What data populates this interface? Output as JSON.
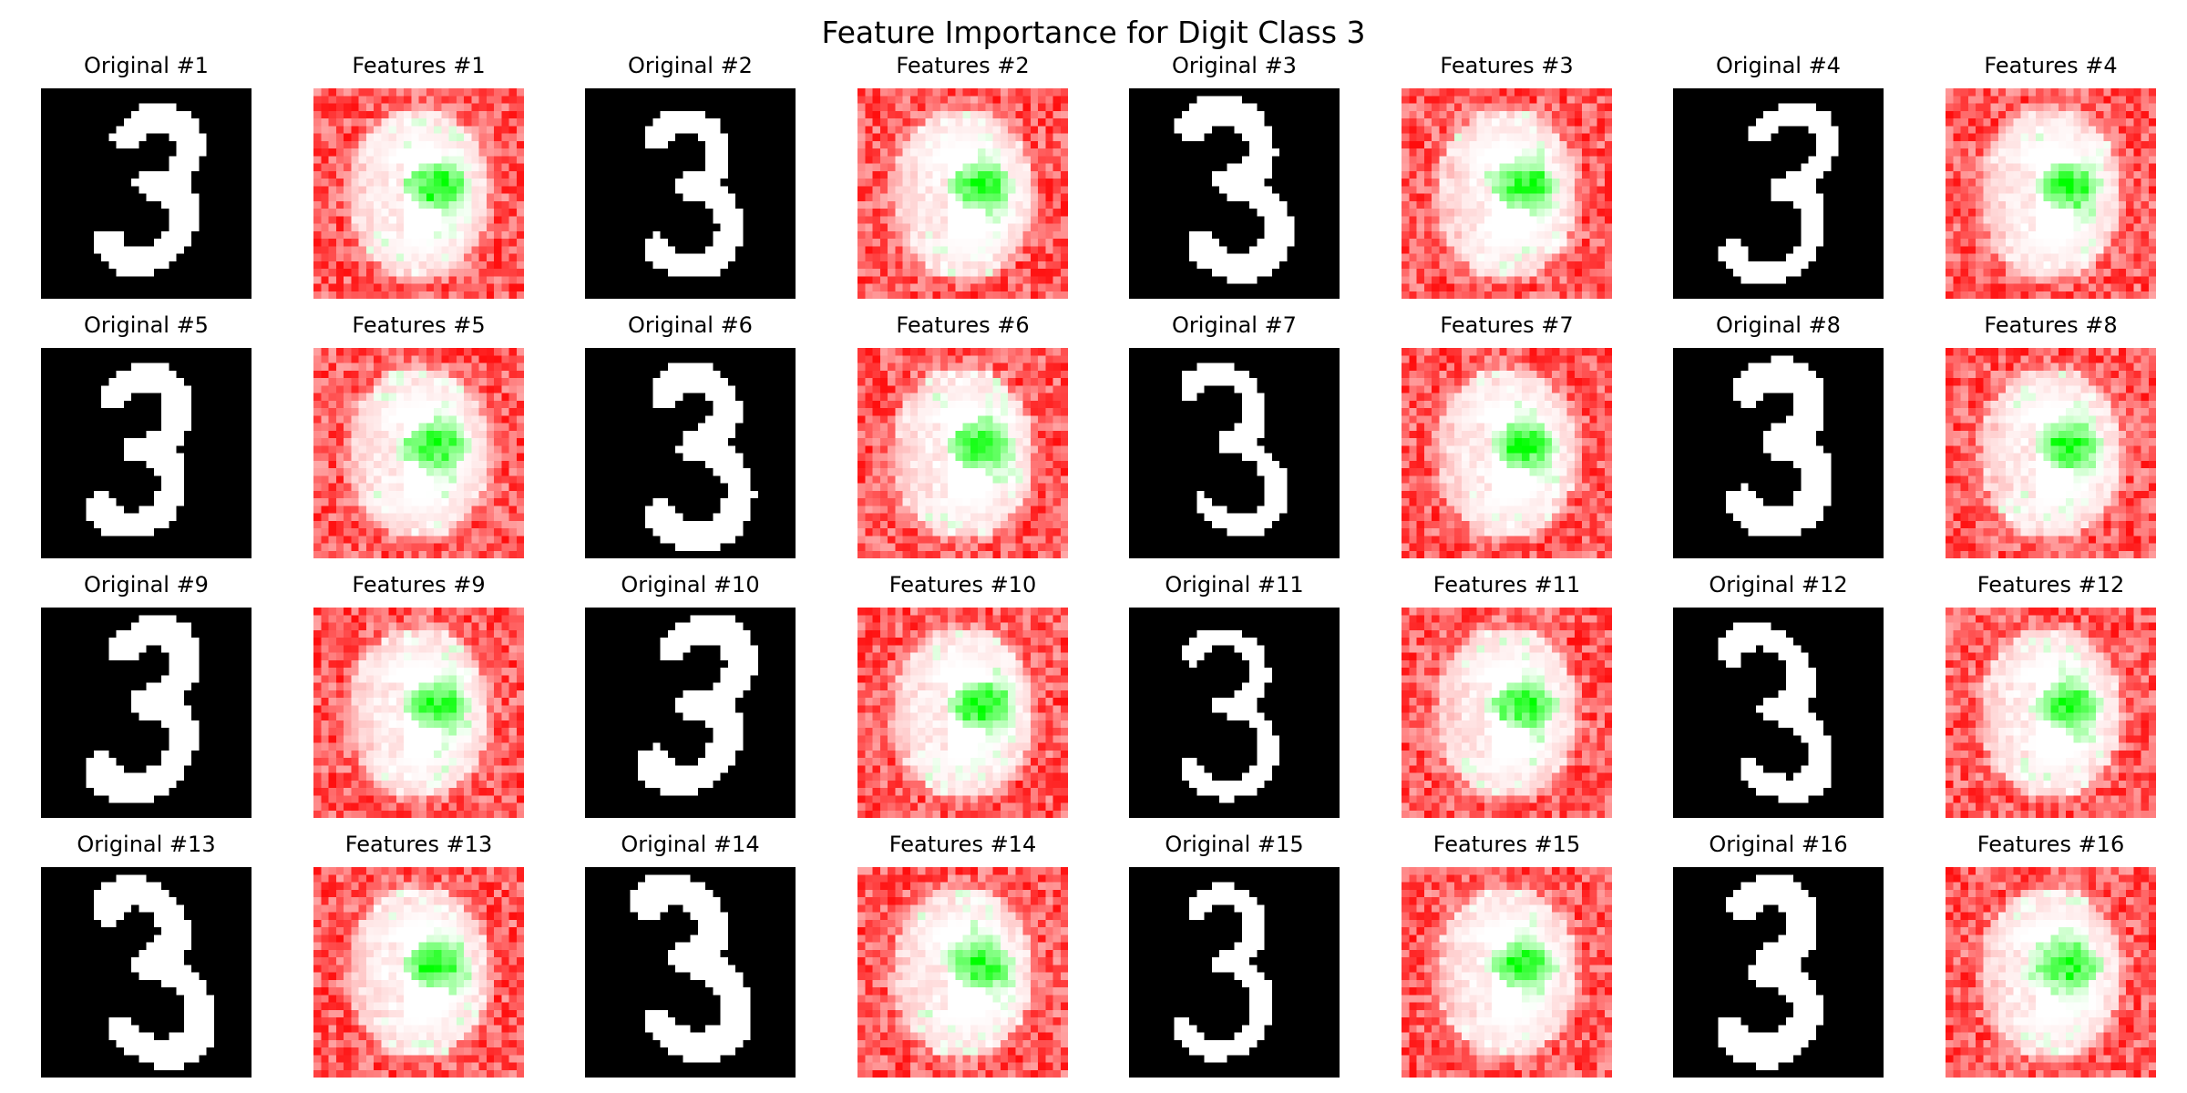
{
  "title": "Feature Importance for Digit Class 3",
  "chart_data": {
    "type": "heatmap",
    "title": "Feature Importance for Digit Class 3",
    "grid": {
      "rows": 4,
      "cols": 8
    },
    "image_resolution": 28,
    "colors": {
      "background": "#000000",
      "digit": "#ffffff",
      "negative": "#ff0000",
      "neutral": "#ffffff",
      "positive": "#00ff00"
    },
    "panels": [
      {
        "type": "original",
        "label": "Original #1"
      },
      {
        "type": "features",
        "label": "Features #1"
      },
      {
        "type": "original",
        "label": "Original #2"
      },
      {
        "type": "features",
        "label": "Features #2"
      },
      {
        "type": "original",
        "label": "Original #3"
      },
      {
        "type": "features",
        "label": "Features #3"
      },
      {
        "type": "original",
        "label": "Original #4"
      },
      {
        "type": "features",
        "label": "Features #4"
      },
      {
        "type": "original",
        "label": "Original #5"
      },
      {
        "type": "features",
        "label": "Features #5"
      },
      {
        "type": "original",
        "label": "Original #6"
      },
      {
        "type": "features",
        "label": "Features #6"
      },
      {
        "type": "original",
        "label": "Original #7"
      },
      {
        "type": "features",
        "label": "Features #7"
      },
      {
        "type": "original",
        "label": "Original #8"
      },
      {
        "type": "features",
        "label": "Features #8"
      },
      {
        "type": "original",
        "label": "Original #9"
      },
      {
        "type": "features",
        "label": "Features #9"
      },
      {
        "type": "original",
        "label": "Original #10"
      },
      {
        "type": "features",
        "label": "Features #10"
      },
      {
        "type": "original",
        "label": "Original #11"
      },
      {
        "type": "features",
        "label": "Features #11"
      },
      {
        "type": "original",
        "label": "Original #12"
      },
      {
        "type": "features",
        "label": "Features #12"
      },
      {
        "type": "original",
        "label": "Original #13"
      },
      {
        "type": "features",
        "label": "Features #13"
      },
      {
        "type": "original",
        "label": "Original #14"
      },
      {
        "type": "features",
        "label": "Features #14"
      },
      {
        "type": "original",
        "label": "Original #15"
      },
      {
        "type": "features",
        "label": "Features #15"
      },
      {
        "type": "original",
        "label": "Original #16"
      },
      {
        "type": "features",
        "label": "Features #16"
      }
    ]
  }
}
